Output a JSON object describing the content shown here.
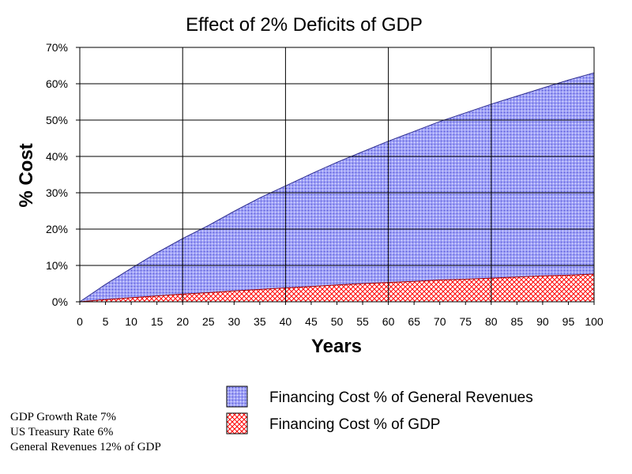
{
  "chart_data": {
    "type": "area",
    "title": "Effect of 2% Deficits of GDP",
    "xlabel": "Years",
    "ylabel": "% Cost",
    "xlim": [
      0,
      100
    ],
    "ylim": [
      0,
      70
    ],
    "x_ticks": [
      "0",
      "5",
      "10",
      "15",
      "20",
      "25",
      "30",
      "35",
      "40",
      "45",
      "50",
      "55",
      "60",
      "65",
      "70",
      "75",
      "80",
      "85",
      "90",
      "95",
      "100"
    ],
    "y_ticks": [
      "0%",
      "10%",
      "20%",
      "30%",
      "40%",
      "50%",
      "60%",
      "70%"
    ],
    "grid": "major",
    "legend_position": "bottom-right",
    "x": [
      0,
      5,
      10,
      15,
      20,
      25,
      30,
      35,
      40,
      45,
      50,
      55,
      60,
      65,
      70,
      75,
      80,
      85,
      90,
      95,
      100
    ],
    "series": [
      {
        "name": "Financing Cost % of General Revenues",
        "color": "#9999ff",
        "pattern": "dotted",
        "values": [
          0,
          4.8,
          9.2,
          13.5,
          17.4,
          21.0,
          24.9,
          28.6,
          31.9,
          35.2,
          38.4,
          41.3,
          44.2,
          46.9,
          49.6,
          52.0,
          54.4,
          56.6,
          58.8,
          61.0,
          63.0
        ]
      },
      {
        "name": "Financing Cost % of GDP",
        "color": "#ff0000",
        "pattern": "crosshatch",
        "values": [
          0,
          0.6,
          1.1,
          1.6,
          2.1,
          2.5,
          3.0,
          3.4,
          3.8,
          4.2,
          4.6,
          5.0,
          5.3,
          5.6,
          6.0,
          6.2,
          6.5,
          6.8,
          7.1,
          7.3,
          7.6
        ]
      }
    ]
  },
  "notes": [
    "GDP Growth Rate 7%",
    "US Treasury Rate 6%",
    "General Revenues 12% of GDP"
  ]
}
